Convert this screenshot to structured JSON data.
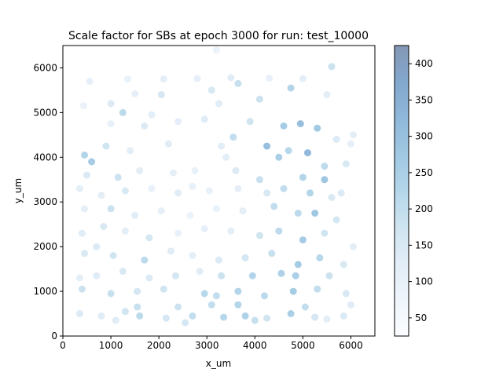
{
  "chart_data": {
    "type": "scatter",
    "title": "Scale factor for SBs at epoch 3000 for run: test_10000",
    "xlabel": "x_um",
    "ylabel": "y_um",
    "xlim": [
      0,
      6500
    ],
    "ylim": [
      0,
      6500
    ],
    "x_ticks": [
      0,
      1000,
      2000,
      3000,
      4000,
      5000,
      6000
    ],
    "x_tick_labels": [
      "0",
      "1000",
      "2000",
      "3000",
      "4000",
      "5000",
      "6000"
    ],
    "y_ticks": [
      0,
      1000,
      2000,
      3000,
      4000,
      5000,
      6000
    ],
    "y_tick_labels": [
      "0",
      "1000",
      "2000",
      "3000",
      "4000",
      "5000",
      "6000"
    ],
    "grid": false,
    "colormap": "Blues",
    "point_alpha": 0.5,
    "colorbar": {
      "range": [
        25,
        425
      ],
      "ticks": [
        50,
        100,
        150,
        200,
        250,
        300,
        350,
        400
      ],
      "tick_labels": [
        "50",
        "100",
        "150",
        "200",
        "250",
        "300",
        "350",
        "400"
      ]
    },
    "points": [
      [
        560,
        5700,
        110
      ],
      [
        1350,
        5750,
        95
      ],
      [
        2100,
        5750,
        120
      ],
      [
        2800,
        5760,
        105
      ],
      [
        3500,
        5780,
        130
      ],
      [
        4300,
        5770,
        100
      ],
      [
        5000,
        5760,
        115
      ],
      [
        5600,
        6030,
        180
      ],
      [
        430,
        5150,
        90
      ],
      [
        1000,
        5200,
        140
      ],
      [
        1500,
        5420,
        110
      ],
      [
        2050,
        5400,
        160
      ],
      [
        3100,
        5500,
        150
      ],
      [
        3650,
        5650,
        190
      ],
      [
        4100,
        5300,
        180
      ],
      [
        4750,
        5550,
        230
      ],
      [
        5500,
        5400,
        120
      ],
      [
        1000,
        4750,
        100
      ],
      [
        1250,
        5000,
        210
      ],
      [
        1850,
        4950,
        120
      ],
      [
        2400,
        4800,
        115
      ],
      [
        2950,
        4850,
        130
      ],
      [
        3900,
        4800,
        170
      ],
      [
        4600,
        4700,
        260
      ],
      [
        4950,
        4750,
        300
      ],
      [
        5300,
        4650,
        270
      ],
      [
        5700,
        4400,
        140
      ],
      [
        6000,
        4300,
        110
      ],
      [
        450,
        4050,
        230
      ],
      [
        900,
        4250,
        170
      ],
      [
        1400,
        4150,
        120
      ],
      [
        2200,
        4300,
        130
      ],
      [
        3300,
        4250,
        125
      ],
      [
        3550,
        4450,
        200
      ],
      [
        4250,
        4250,
        300
      ],
      [
        4500,
        4000,
        250
      ],
      [
        4700,
        4150,
        220
      ],
      [
        5100,
        4100,
        320
      ],
      [
        5450,
        3800,
        210
      ],
      [
        5900,
        3850,
        150
      ],
      [
        600,
        3900,
        260
      ],
      [
        500,
        3600,
        140
      ],
      [
        1150,
        3550,
        180
      ],
      [
        1600,
        3700,
        120
      ],
      [
        2300,
        3650,
        110
      ],
      [
        2750,
        3700,
        100
      ],
      [
        3600,
        3700,
        140
      ],
      [
        4100,
        3500,
        190
      ],
      [
        5000,
        3550,
        230
      ],
      [
        5450,
        3500,
        280
      ],
      [
        350,
        3300,
        120
      ],
      [
        800,
        3150,
        120
      ],
      [
        1300,
        3250,
        150
      ],
      [
        1850,
        3300,
        100
      ],
      [
        2400,
        3200,
        130
      ],
      [
        3050,
        3250,
        95
      ],
      [
        3650,
        3300,
        110
      ],
      [
        4250,
        3200,
        150
      ],
      [
        4600,
        3300,
        200
      ],
      [
        5150,
        3200,
        230
      ],
      [
        5600,
        3100,
        150
      ],
      [
        450,
        2850,
        110
      ],
      [
        1000,
        2850,
        180
      ],
      [
        1500,
        2700,
        130
      ],
      [
        2050,
        2800,
        110
      ],
      [
        2650,
        2700,
        90
      ],
      [
        3200,
        2850,
        100
      ],
      [
        3750,
        2800,
        120
      ],
      [
        4400,
        2900,
        200
      ],
      [
        4900,
        2750,
        210
      ],
      [
        5250,
        2750,
        280
      ],
      [
        5700,
        2600,
        160
      ],
      [
        400,
        2300,
        130
      ],
      [
        850,
        2450,
        150
      ],
      [
        1300,
        2350,
        120
      ],
      [
        1800,
        2200,
        160
      ],
      [
        2400,
        2300,
        100
      ],
      [
        2950,
        2400,
        110
      ],
      [
        3500,
        2350,
        120
      ],
      [
        4100,
        2250,
        170
      ],
      [
        4500,
        2350,
        210
      ],
      [
        5000,
        2150,
        260
      ],
      [
        5450,
        2300,
        170
      ],
      [
        450,
        1850,
        150
      ],
      [
        1050,
        1800,
        170
      ],
      [
        1700,
        1700,
        210
      ],
      [
        2250,
        1900,
        130
      ],
      [
        2700,
        1800,
        110
      ],
      [
        3250,
        1700,
        140
      ],
      [
        3800,
        1750,
        160
      ],
      [
        4350,
        1850,
        190
      ],
      [
        4900,
        1600,
        260
      ],
      [
        5350,
        1750,
        220
      ],
      [
        5850,
        1600,
        150
      ],
      [
        350,
        1300,
        120
      ],
      [
        700,
        1350,
        130
      ],
      [
        1250,
        1450,
        150
      ],
      [
        1800,
        1300,
        140
      ],
      [
        2350,
        1350,
        160
      ],
      [
        2850,
        1450,
        130
      ],
      [
        3300,
        1350,
        180
      ],
      [
        3950,
        1350,
        230
      ],
      [
        4550,
        1400,
        240
      ],
      [
        4850,
        1350,
        250
      ],
      [
        5550,
        1350,
        180
      ],
      [
        400,
        1050,
        180
      ],
      [
        1000,
        950,
        190
      ],
      [
        1550,
        1000,
        160
      ],
      [
        2100,
        1050,
        170
      ],
      [
        2950,
        950,
        220
      ],
      [
        3200,
        900,
        200
      ],
      [
        3650,
        1000,
        230
      ],
      [
        4200,
        900,
        210
      ],
      [
        4800,
        1000,
        260
      ],
      [
        5300,
        1050,
        200
      ],
      [
        5900,
        950,
        150
      ],
      [
        350,
        500,
        140
      ],
      [
        800,
        450,
        130
      ],
      [
        1300,
        550,
        170
      ],
      [
        1600,
        450,
        210
      ],
      [
        2150,
        400,
        160
      ],
      [
        2700,
        450,
        200
      ],
      [
        3350,
        420,
        220
      ],
      [
        3800,
        450,
        240
      ],
      [
        4250,
        400,
        170
      ],
      [
        4750,
        500,
        250
      ],
      [
        5250,
        420,
        160
      ],
      [
        5850,
        450,
        140
      ],
      [
        1550,
        650,
        190
      ],
      [
        2400,
        650,
        180
      ],
      [
        3100,
        700,
        200
      ],
      [
        3650,
        700,
        230
      ],
      [
        5050,
        650,
        200
      ],
      [
        1100,
        350,
        130
      ],
      [
        2550,
        300,
        160
      ],
      [
        4000,
        350,
        190
      ],
      [
        5500,
        380,
        120
      ],
      [
        700,
        2000,
        140
      ],
      [
        2700,
        3350,
        100
      ],
      [
        3400,
        4000,
        120
      ],
      [
        1700,
        4700,
        140
      ],
      [
        3250,
        5200,
        130
      ],
      [
        5800,
        3200,
        140
      ],
      [
        6050,
        4500,
        120
      ],
      [
        6050,
        2000,
        120
      ],
      [
        6000,
        700,
        130
      ],
      [
        3200,
        6400,
        90
      ]
    ]
  }
}
